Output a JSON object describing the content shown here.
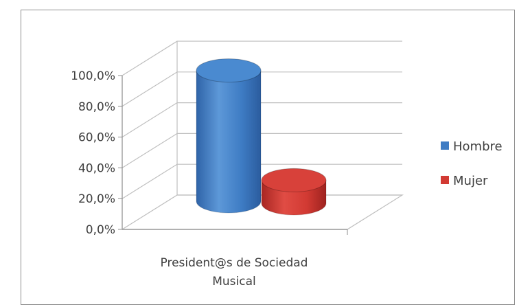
{
  "chart_data": {
    "type": "bar",
    "style": "3d-cylinder",
    "categories": [
      "President@s de Sociedad Musical"
    ],
    "category_label_lines": [
      "President@s de Sociedad",
      "Musical"
    ],
    "series": [
      {
        "name": "Hombre",
        "values": [
          85.0
        ],
        "color": "#3e7cc4"
      },
      {
        "name": "Mujer",
        "values": [
          15.0
        ],
        "color": "#d23a33"
      }
    ],
    "ylim": [
      0,
      100
    ],
    "y_ticks": [
      "0,0%",
      "20,0%",
      "40,0%",
      "60,0%",
      "80,0%",
      "100,0%"
    ],
    "grid": true,
    "legend_position": "right"
  }
}
